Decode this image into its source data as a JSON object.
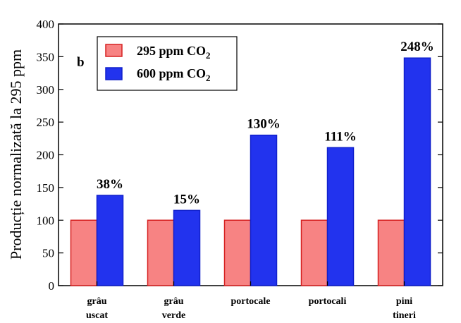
{
  "chart_data": {
    "type": "bar",
    "panel_label": "b",
    "ylabel": "Producție normalizată la 295 ppm",
    "ylim": [
      0,
      400
    ],
    "yticks": [
      "0",
      "50",
      "100",
      "150",
      "200",
      "250",
      "300",
      "350",
      "400"
    ],
    "categories": [
      [
        "grâu",
        "uscat"
      ],
      [
        "grâu",
        "verde"
      ],
      [
        "portocale"
      ],
      [
        "portocali"
      ],
      [
        "pini",
        "tineri"
      ]
    ],
    "series": [
      {
        "name": "295 ppm CO",
        "subscript": "2",
        "values": [
          100,
          100,
          100,
          100,
          100
        ],
        "color": "#f78383",
        "edge": "#d62020"
      },
      {
        "name": "600 ppm CO",
        "subscript": "2",
        "values": [
          138,
          115,
          230,
          211,
          348
        ],
        "color": "#2233ee",
        "edge": "#1020cc"
      }
    ],
    "data_labels": [
      "38%",
      "15%",
      "130%",
      "111%",
      "248%"
    ],
    "legend_position": "top-left",
    "grid": false
  }
}
